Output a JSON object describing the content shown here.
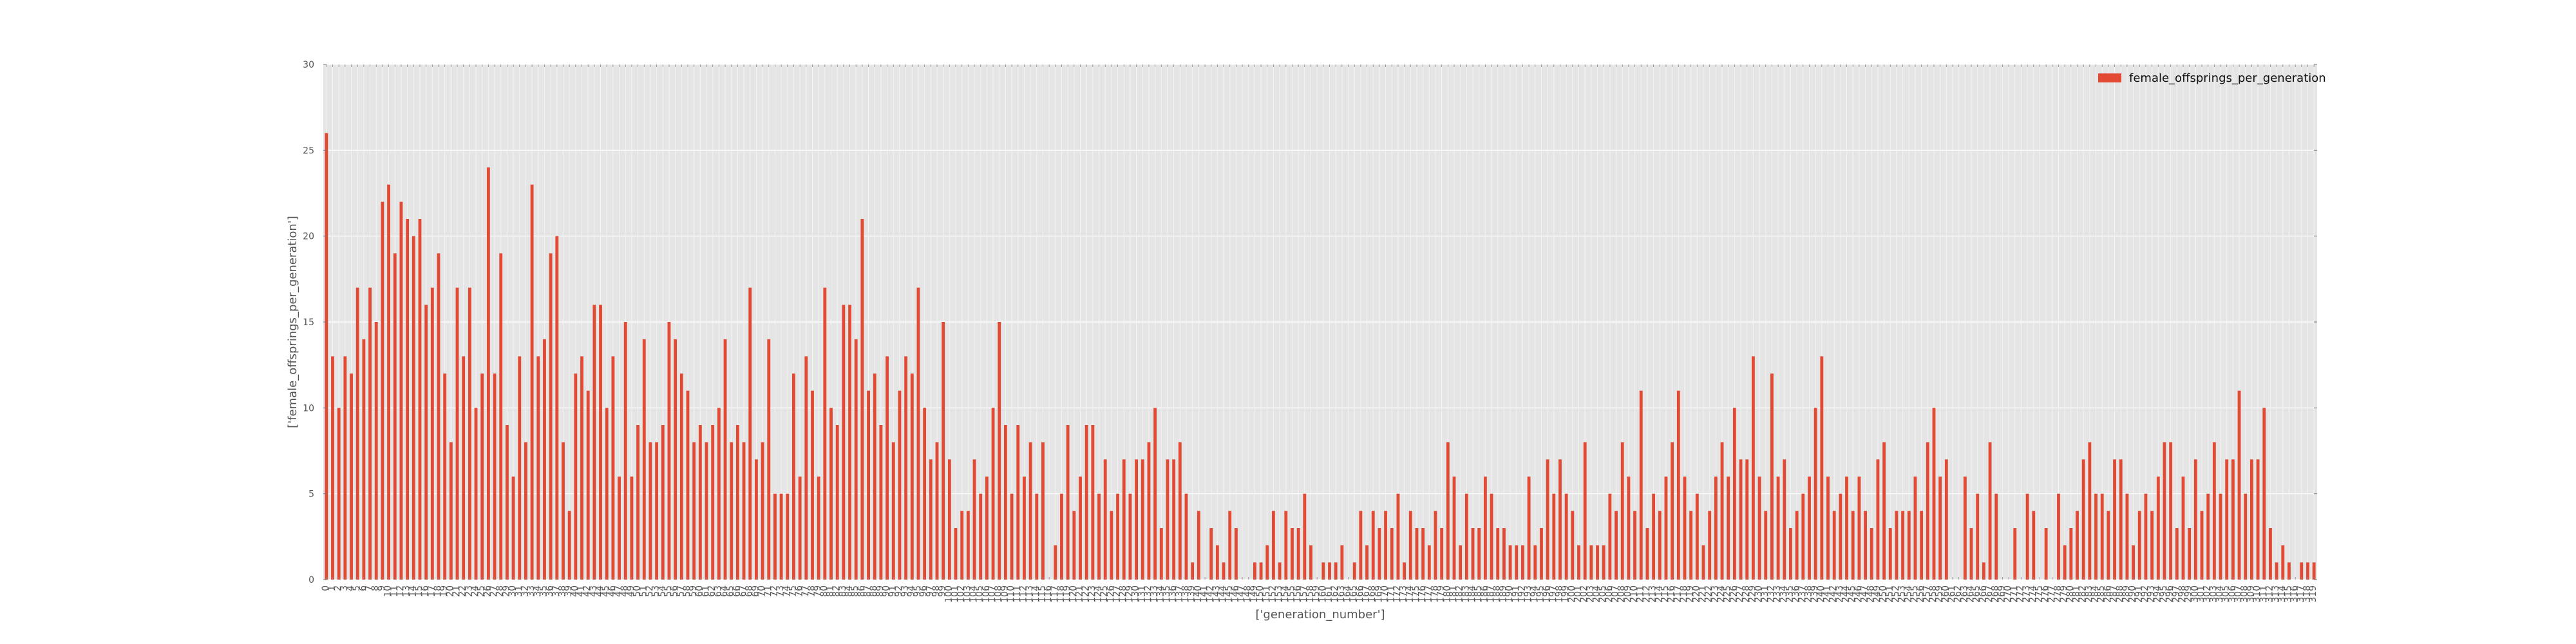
{
  "chart_data": {
    "type": "bar",
    "xlabel": "['generation_number']",
    "ylabel": "['female_offsprings_per_generation']",
    "ylim": [
      0,
      30
    ],
    "yticks": [
      0,
      5,
      10,
      15,
      20,
      25,
      30
    ],
    "grid": true,
    "legend_position": "top-right",
    "series": [
      {
        "name": "female_offsprings_per_generation",
        "color": "#e24a33",
        "values": [
          26,
          13,
          10,
          13,
          12,
          17,
          14,
          17,
          15,
          22,
          23,
          19,
          22,
          21,
          20,
          21,
          16,
          17,
          19,
          12,
          8,
          17,
          13,
          17,
          10,
          12,
          24,
          12,
          19,
          9,
          6,
          13,
          8,
          23,
          13,
          14,
          19,
          20,
          8,
          4,
          12,
          13,
          11,
          16,
          16,
          10,
          13,
          6,
          15,
          6,
          9,
          14,
          8,
          8,
          9,
          15,
          14,
          12,
          11,
          8,
          9,
          8,
          9,
          10,
          14,
          8,
          9,
          8,
          17,
          7,
          8,
          14,
          5,
          5,
          5,
          12,
          6,
          13,
          11,
          6,
          17,
          10,
          9,
          16,
          16,
          14,
          21,
          11,
          12,
          9,
          13,
          8,
          11,
          13,
          12,
          17,
          10,
          7,
          8,
          15,
          7,
          3,
          4,
          4,
          7,
          5,
          6,
          10,
          15,
          9,
          5,
          9,
          6,
          8,
          5,
          8,
          0,
          2,
          5,
          9,
          4,
          6,
          9,
          9,
          5,
          7,
          4,
          5,
          7,
          5,
          7,
          7,
          8,
          10,
          3,
          7,
          7,
          8,
          5,
          1,
          4,
          0,
          3,
          2,
          1,
          4,
          3,
          0,
          0,
          1,
          1,
          2,
          4,
          1,
          4,
          3,
          3,
          5,
          2,
          0,
          1,
          1,
          1,
          2,
          0,
          1,
          4,
          2,
          4,
          3,
          4,
          3,
          5,
          1,
          4,
          3,
          3,
          2,
          4,
          3,
          8,
          6,
          2,
          5,
          3,
          3,
          6,
          5,
          3,
          3,
          2,
          2,
          2,
          6,
          2,
          3,
          7,
          5,
          7,
          5,
          4,
          2,
          8,
          2,
          2,
          2,
          5,
          4,
          8,
          6,
          4,
          11,
          3,
          5,
          4,
          6,
          8,
          11,
          6,
          4,
          5,
          2,
          4,
          6,
          8,
          6,
          10,
          7,
          7,
          13,
          6,
          4,
          12,
          6,
          7,
          3,
          4,
          5,
          6,
          10,
          13,
          6,
          4,
          5,
          6,
          4,
          6,
          4,
          3,
          7,
          8,
          3,
          4,
          4,
          4,
          6,
          4,
          8,
          10,
          6,
          7,
          0,
          0,
          6,
          3,
          5,
          1,
          8,
          5,
          0,
          0,
          3,
          0,
          5,
          4,
          0,
          3,
          0,
          5,
          2,
          3,
          4,
          7,
          8,
          5,
          5,
          4,
          7,
          7,
          5,
          2,
          4,
          5,
          4,
          6,
          8,
          8,
          3,
          6,
          3,
          7,
          4,
          5,
          8,
          5,
          7,
          7,
          11,
          5,
          7,
          7,
          10,
          3,
          1,
          2,
          1,
          0,
          1,
          1,
          1
        ]
      }
    ]
  }
}
